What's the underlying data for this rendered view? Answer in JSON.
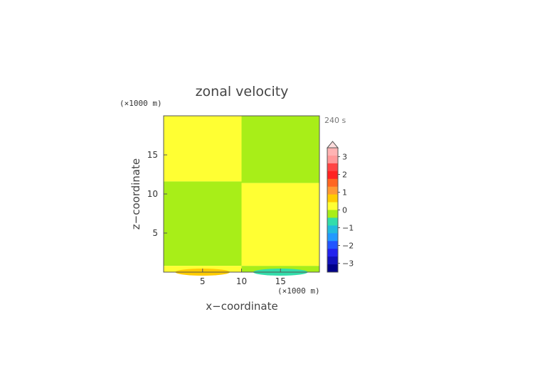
{
  "chart_data": {
    "type": "heatmap",
    "title": "zonal velocity",
    "xlabel": "x−coordinate",
    "ylabel": "z−coordinate",
    "x_unit": "(×1000 m)",
    "z_unit": "(×1000 m)",
    "time_label": "240 s",
    "xlim": [
      0,
      20
    ],
    "zlim": [
      0,
      20
    ],
    "x_ticks": [
      5,
      10,
      15
    ],
    "z_ticks": [
      5,
      10,
      15
    ],
    "grid": false,
    "regions": [
      {
        "x": [
          0,
          10
        ],
        "z": [
          11.6,
          20
        ],
        "level": "0 to 0.5",
        "color": "#ffff33"
      },
      {
        "x": [
          10,
          20
        ],
        "z": [
          11.4,
          20
        ],
        "level": "-0.5 to 0",
        "color": "#a8ee18"
      },
      {
        "x": [
          0,
          10
        ],
        "z": [
          0.8,
          11.6
        ],
        "level": "-0.5 to 0",
        "color": "#a8ee18"
      },
      {
        "x": [
          10,
          20
        ],
        "z": [
          0.8,
          11.4
        ],
        "level": "0 to 0.5",
        "color": "#ffff33"
      },
      {
        "x": [
          0,
          10
        ],
        "z": [
          0,
          0.8
        ],
        "level": "0 to 0.5",
        "color": "#ffff33"
      },
      {
        "x": [
          10,
          20
        ],
        "z": [
          0,
          0.8
        ],
        "level": "-0.5 to 0",
        "color": "#a8ee18"
      }
    ],
    "surface_features": [
      {
        "x_center": 5,
        "x_half_width": 3.5,
        "height": 0.45,
        "level": "0.5 to 1",
        "color": "#ffcc00"
      },
      {
        "x_center": 15,
        "x_half_width": 3.5,
        "height": 0.45,
        "level": "-1 to -0.5",
        "color": "#33ddaa"
      }
    ],
    "colorbar": {
      "ticks": [
        3,
        2,
        1,
        0,
        -1,
        -2,
        -3
      ],
      "range": [
        -3.5,
        3.5
      ],
      "extend_max": true,
      "colors_top_to_bottom": [
        "#ffb3b3",
        "#ff9999",
        "#ff4444",
        "#ff2222",
        "#ff6622",
        "#ff9933",
        "#ffcc00",
        "#ffff33",
        "#a8ee18",
        "#33ddaa",
        "#22bbdd",
        "#2299ff",
        "#2255ff",
        "#2222ee",
        "#1111bb",
        "#000088"
      ]
    }
  }
}
